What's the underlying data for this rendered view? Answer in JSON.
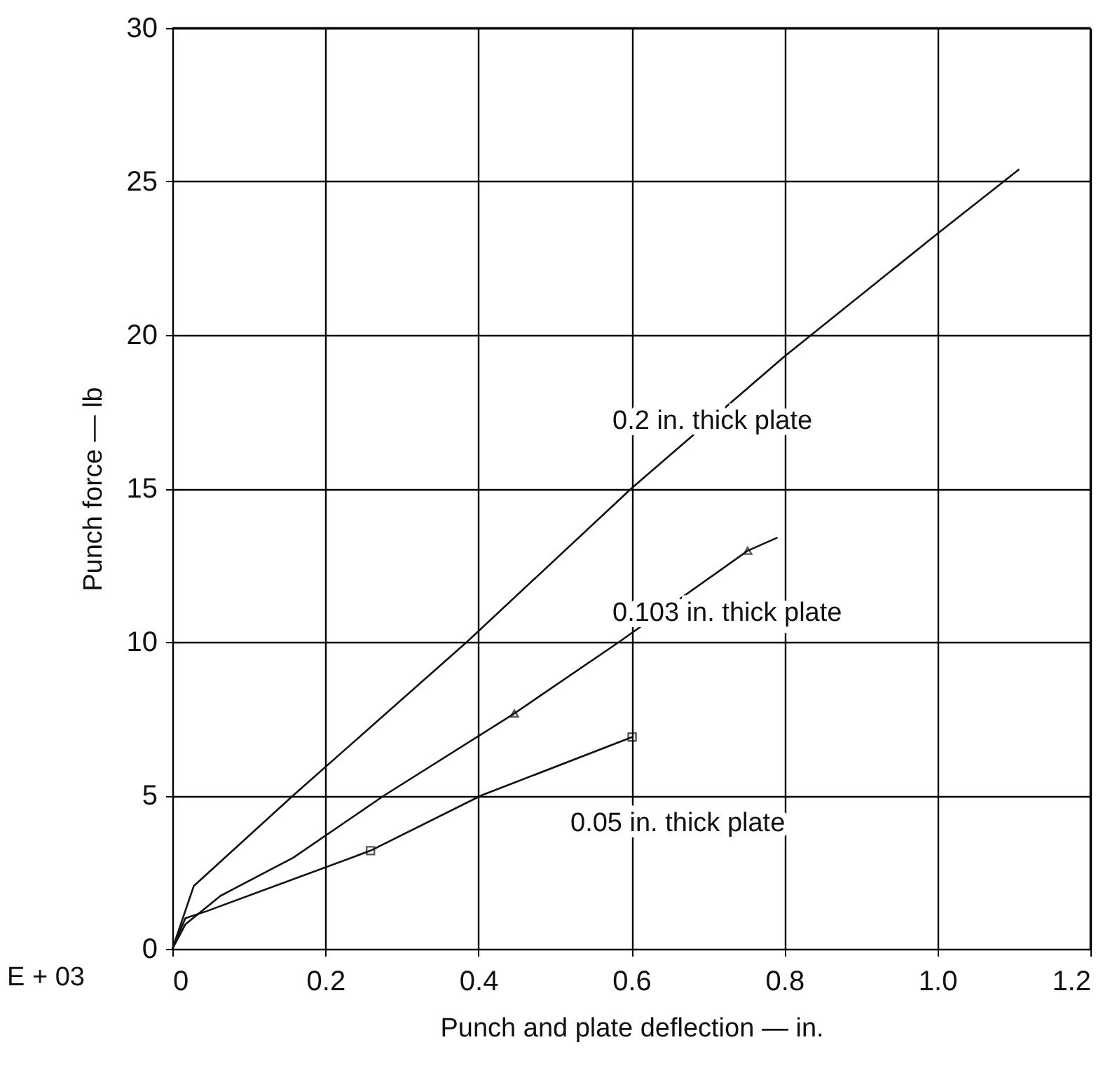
{
  "chart_data": {
    "type": "line",
    "xlabel": "Punch and plate deflection — in.",
    "ylabel": "Punch force — lb",
    "xlim": [
      0,
      1.2
    ],
    "xticks": [
      0,
      0.2,
      0.4,
      0.6,
      0.8,
      {
        "value": 1.0,
        "label": "1.0"
      },
      1.2
    ],
    "ylim": [
      0,
      30
    ],
    "yticks": [
      0,
      5,
      10,
      15,
      20,
      25,
      30
    ],
    "grid": true,
    "line_style": "solid",
    "series": [
      {
        "color": "#111111",
        "x": [
          0,
          0.028,
          0.158,
          0.385,
          0.6,
          0.8,
          1.0,
          1.107
        ],
        "values": [
          0,
          2.05,
          5,
          10,
          15,
          19.3,
          23.3,
          25.4
        ]
      },
      {
        "color": "#111111",
        "x": [
          0,
          0.017,
          0.063,
          0.158,
          0.277,
          0.447,
          0.584,
          0.752,
          0.791
        ],
        "values": [
          0,
          0.8,
          1.73,
          2.97,
          5,
          7.67,
          10,
          12.97,
          13.4
        ]
      },
      {
        "color": "#111111",
        "x": [
          0,
          0.017,
          0.045,
          0.259,
          0.404,
          0.601
        ],
        "values": [
          0,
          1.0,
          1.23,
          3.2,
          5,
          6.9
        ]
      },
      {
        "type": "scatter",
        "marker": "triangle",
        "color": "#111111",
        "x": [
          0.447,
          0.752
        ],
        "values": [
          7.67,
          12.97
        ]
      },
      {
        "type": "scatter",
        "marker": "square",
        "color": "#111111",
        "x": [
          0.259,
          0.601
        ],
        "values": [
          3.2,
          6.9
        ]
      }
    ],
    "annotations": [
      "0.2 in. thick plate",
      "0.103 in. thick plate",
      "0.05 in. thick plate",
      "E + 03"
    ]
  }
}
